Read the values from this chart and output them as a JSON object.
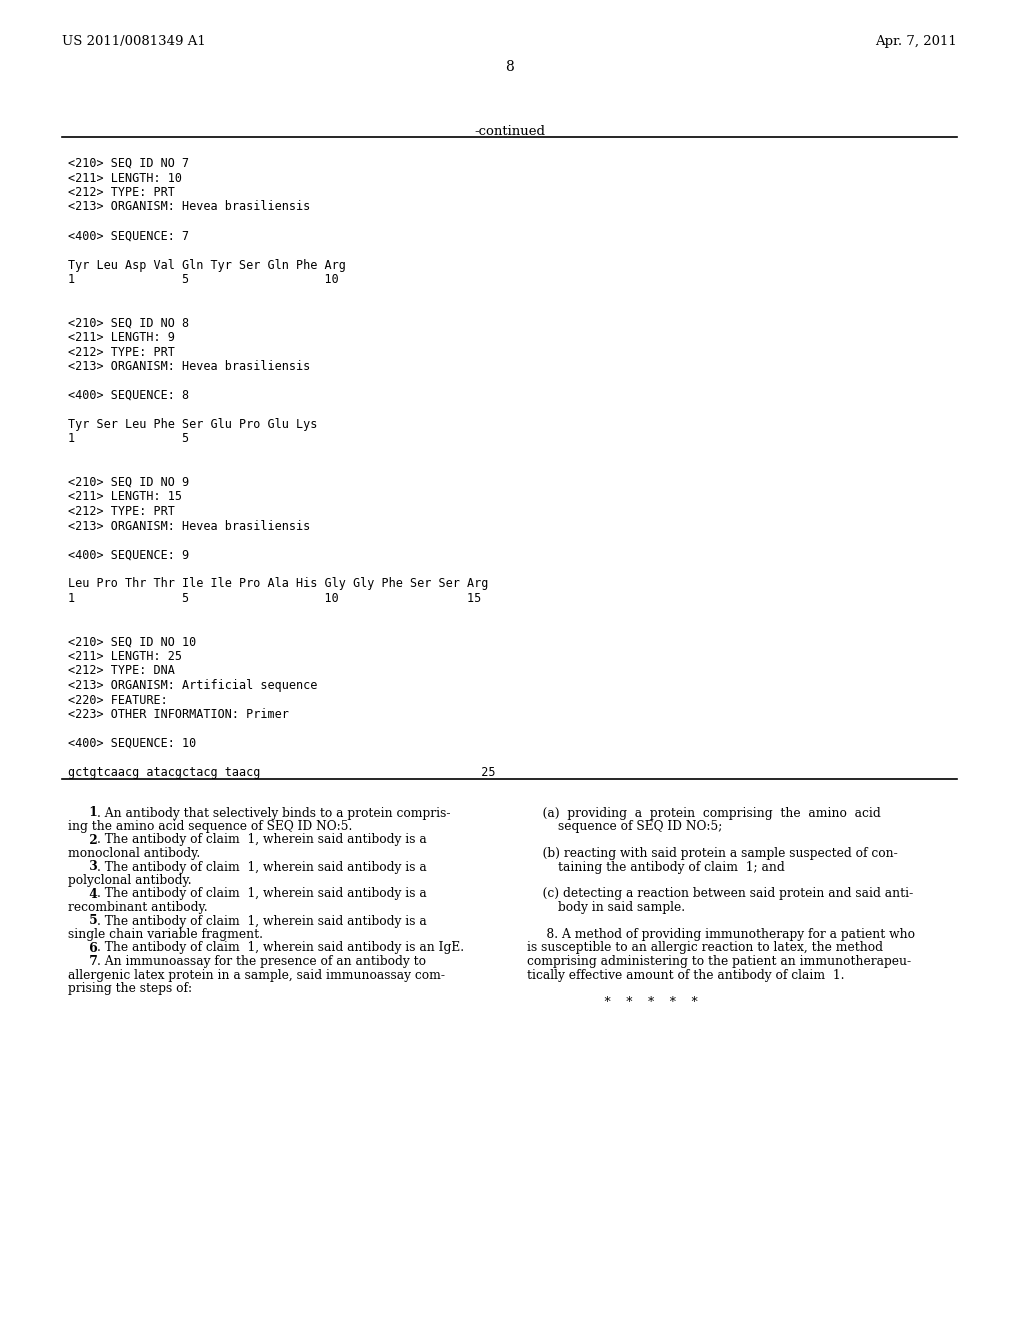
{
  "header_left": "US 2011/0081349 A1",
  "header_right": "Apr. 7, 2011",
  "page_number": "8",
  "continued_label": "-continued",
  "background_color": "#ffffff",
  "monospace_lines": [
    "<210> SEQ ID NO 7",
    "<211> LENGTH: 10",
    "<212> TYPE: PRT",
    "<213> ORGANISM: Hevea brasiliensis",
    "",
    "<400> SEQUENCE: 7",
    "",
    "Tyr Leu Asp Val Gln Tyr Ser Gln Phe Arg",
    "1               5                   10",
    "",
    "",
    "<210> SEQ ID NO 8",
    "<211> LENGTH: 9",
    "<212> TYPE: PRT",
    "<213> ORGANISM: Hevea brasiliensis",
    "",
    "<400> SEQUENCE: 8",
    "",
    "Tyr Ser Leu Phe Ser Glu Pro Glu Lys",
    "1               5",
    "",
    "",
    "<210> SEQ ID NO 9",
    "<211> LENGTH: 15",
    "<212> TYPE: PRT",
    "<213> ORGANISM: Hevea brasiliensis",
    "",
    "<400> SEQUENCE: 9",
    "",
    "Leu Pro Thr Thr Ile Ile Pro Ala His Gly Gly Phe Ser Ser Arg",
    "1               5                   10                  15",
    "",
    "",
    "<210> SEQ ID NO 10",
    "<211> LENGTH: 25",
    "<212> TYPE: DNA",
    "<213> ORGANISM: Artificial sequence",
    "<220> FEATURE:",
    "<223> OTHER INFORMATION: Primer",
    "",
    "<400> SEQUENCE: 10",
    "",
    "gctgtcaacg atacgctacg taacg                               25"
  ],
  "claims_left": [
    "     1. An antibody that selectively binds to a protein compris-",
    "ing the amino acid sequence of SEQ ID NO:5.",
    "     2. The antibody of claim  1, wherein said antibody is a",
    "monoclonal antibody.",
    "     3. The antibody of claim  1, wherein said antibody is a",
    "polyclonal antibody.",
    "     4. The antibody of claim  1, wherein said antibody is a",
    "recombinant antibody.",
    "     5. The antibody of claim  1, wherein said antibody is a",
    "single chain variable fragment.",
    "     6. The antibody of claim  1, wherein said antibody is an IgE.",
    "     7. An immunoassay for the presence of an antibody to",
    "allergenic latex protein in a sample, said immunoassay com-",
    "prising the steps of:"
  ],
  "claims_right": [
    "    (a)  providing  a  protein  comprising  the  amino  acid",
    "        sequence of SEQ ID NO:5;",
    "",
    "    (b) reacting with said protein a sample suspected of con-",
    "        taining the antibody of claim  1; and",
    "",
    "    (c) detecting a reaction between said protein and said anti-",
    "        body in said sample.",
    "",
    "     8. A method of providing immunotherapy for a patient who",
    "is susceptible to an allergic reaction to latex, the method",
    "comprising administering to the patient an immunotherapeu-",
    "tically effective amount of the antibody of claim  1.",
    "",
    "                    *    *    *    *    *"
  ]
}
